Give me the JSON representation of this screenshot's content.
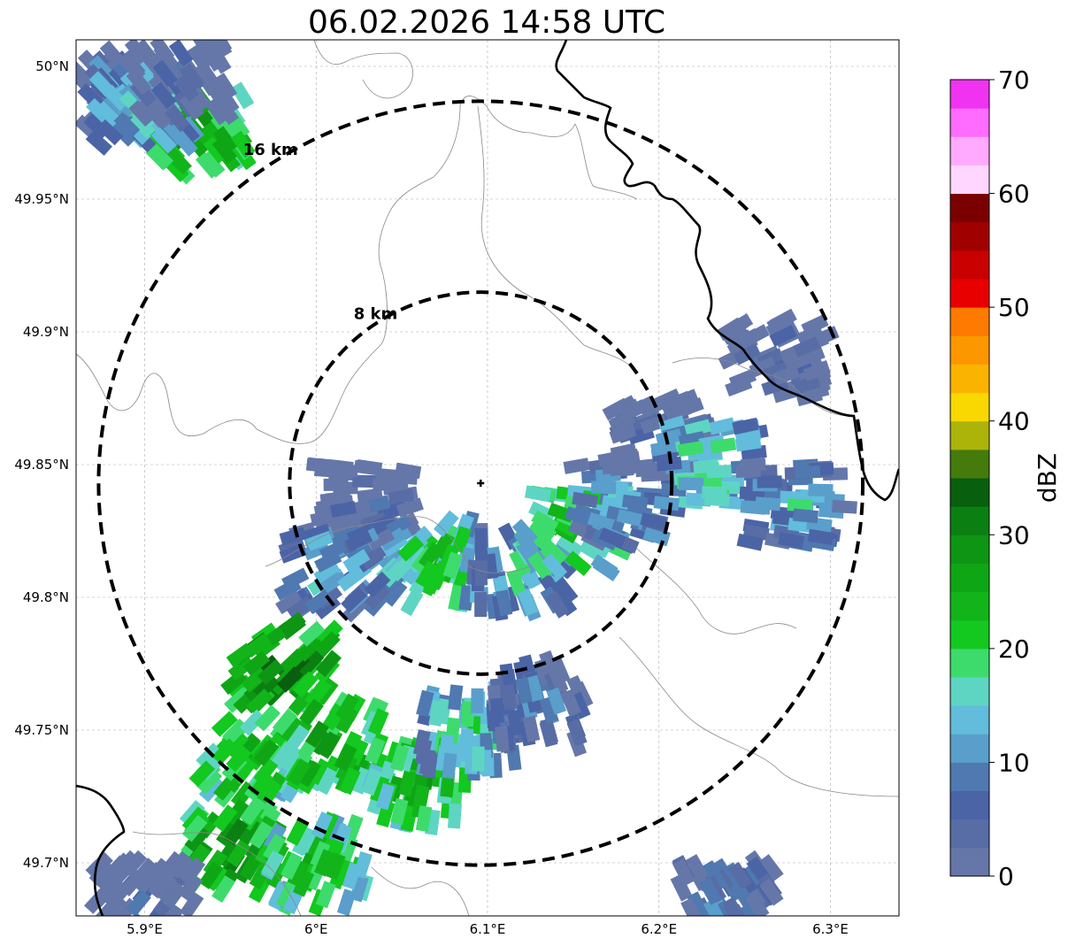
{
  "title": "06.02.2026 14:58 UTC",
  "map": {
    "lon_range": [
      5.86,
      6.34
    ],
    "lat_range": [
      49.68,
      50.01
    ],
    "center": {
      "lon": 6.096,
      "lat": 49.843
    },
    "grid": true,
    "x_ticks": [
      {
        "value": 5.9,
        "label": "5.9°E"
      },
      {
        "value": 6.0,
        "label": "6°E"
      },
      {
        "value": 6.1,
        "label": "6.1°E"
      },
      {
        "value": 6.2,
        "label": "6.2°E"
      },
      {
        "value": 6.3,
        "label": "6.3°E"
      }
    ],
    "y_ticks": [
      {
        "value": 49.7,
        "label": "49.7°N"
      },
      {
        "value": 49.75,
        "label": "49.75°N"
      },
      {
        "value": 49.8,
        "label": "49.8°N"
      },
      {
        "value": 49.85,
        "label": "49.85°N"
      },
      {
        "value": 49.9,
        "label": "49.9°N"
      },
      {
        "value": 49.95,
        "label": "49.95°N"
      },
      {
        "value": 50.0,
        "label": "50°N"
      }
    ],
    "range_rings": [
      {
        "radius_km": 8,
        "label": "8 km"
      },
      {
        "radius_km": 16,
        "label": "16 km"
      }
    ]
  },
  "colorbar": {
    "label": "dBZ",
    "min": 0,
    "max": 70,
    "ticks": [
      {
        "value": 0,
        "label": "0"
      },
      {
        "value": 10,
        "label": "10"
      },
      {
        "value": 20,
        "label": "20"
      },
      {
        "value": 30,
        "label": "30"
      },
      {
        "value": 40,
        "label": "40"
      },
      {
        "value": 50,
        "label": "50"
      },
      {
        "value": 60,
        "label": "60"
      },
      {
        "value": 70,
        "label": "70"
      }
    ],
    "colors": [
      "#6577a9",
      "#586da5",
      "#4b64a6",
      "#4f79b0",
      "#5a9ecb",
      "#62bcdc",
      "#5ed5c3",
      "#3ddb6c",
      "#13c81f",
      "#12b41a",
      "#0fa616",
      "#0e9514",
      "#0b7f12",
      "#085f0e",
      "#457b0c",
      "#acb40a",
      "#f8d800",
      "#fab400",
      "#fd9700",
      "#ff7a00",
      "#e80000",
      "#c80000",
      "#a00000",
      "#7a0000",
      "#ffd6ff",
      "#ffaaff",
      "#ff6cff",
      "#f033f0"
    ]
  },
  "chart_data": {
    "type": "heatmap",
    "title": "06.02.2026 14:58 UTC",
    "xlabel": "",
    "ylabel": "",
    "xlim": [
      5.86,
      6.34
    ],
    "ylim": [
      49.68,
      50.01
    ],
    "value_label": "dBZ",
    "value_range": [
      0,
      70
    ],
    "echo_regions": [
      {
        "lon": 5.89,
        "lat": 49.99,
        "dbz": 8
      },
      {
        "lon": 5.93,
        "lat": 49.975,
        "dbz": 28
      },
      {
        "lon": 5.9,
        "lat": 49.985,
        "dbz": 18
      },
      {
        "lon": 5.92,
        "lat": 49.995,
        "dbz": 6
      },
      {
        "lon": 6.03,
        "lat": 49.835,
        "dbz": 6
      },
      {
        "lon": 6.07,
        "lat": 49.813,
        "dbz": 22
      },
      {
        "lon": 6.12,
        "lat": 49.81,
        "dbz": 16
      },
      {
        "lon": 6.15,
        "lat": 49.825,
        "dbz": 24
      },
      {
        "lon": 6.18,
        "lat": 49.835,
        "dbz": 14
      },
      {
        "lon": 6.2,
        "lat": 49.86,
        "dbz": 6
      },
      {
        "lon": 6.23,
        "lat": 49.85,
        "dbz": 20
      },
      {
        "lon": 6.27,
        "lat": 49.89,
        "dbz": 6
      },
      {
        "lon": 6.28,
        "lat": 49.835,
        "dbz": 14
      },
      {
        "lon": 6.01,
        "lat": 49.81,
        "dbz": 14
      },
      {
        "lon": 5.98,
        "lat": 49.775,
        "dbz": 32
      },
      {
        "lon": 5.96,
        "lat": 49.74,
        "dbz": 26
      },
      {
        "lon": 6.01,
        "lat": 49.745,
        "dbz": 28
      },
      {
        "lon": 6.06,
        "lat": 49.73,
        "dbz": 26
      },
      {
        "lon": 6.09,
        "lat": 49.75,
        "dbz": 18
      },
      {
        "lon": 6.13,
        "lat": 49.76,
        "dbz": 10
      },
      {
        "lon": 5.95,
        "lat": 49.705,
        "dbz": 30
      },
      {
        "lon": 6.0,
        "lat": 49.7,
        "dbz": 24
      },
      {
        "lon": 6.24,
        "lat": 49.685,
        "dbz": 10
      },
      {
        "lon": 5.9,
        "lat": 49.685,
        "dbz": 6
      }
    ]
  }
}
